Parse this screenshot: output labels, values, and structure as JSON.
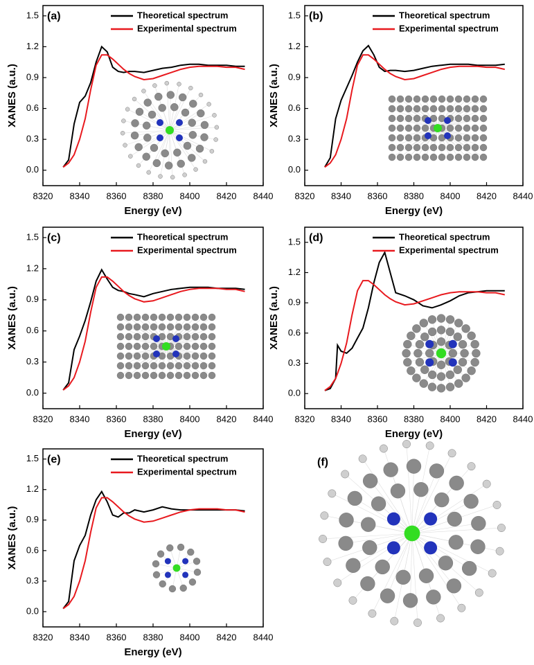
{
  "chart_data": [
    {
      "type": "line",
      "panel_label": "(a)",
      "xlabel": "Energy (eV)",
      "ylabel": "XANES (a.u.)",
      "xlim": [
        8320,
        8440
      ],
      "xticks": [
        8320,
        8340,
        8360,
        8380,
        8400,
        8420,
        8440
      ],
      "ylim": [
        -0.15,
        1.6
      ],
      "yticks": [
        {
          "value": 0,
          "label": "0.0"
        },
        0.3,
        0.6,
        0.9,
        1.2,
        1.5
      ],
      "x": [
        8331,
        8334,
        8337,
        8340,
        8343,
        8346,
        8349,
        8352,
        8355,
        8358,
        8361,
        8364,
        8367,
        8370,
        8375,
        8380,
        8385,
        8390,
        8395,
        8400,
        8405,
        8410,
        8415,
        8420,
        8425,
        8430
      ],
      "series": [
        {
          "name": "Theoretical spectrum",
          "color": "#000000",
          "values": [
            0.03,
            0.1,
            0.45,
            0.66,
            0.72,
            0.85,
            1.05,
            1.2,
            1.15,
            1.0,
            0.96,
            0.95,
            0.96,
            0.96,
            0.95,
            0.97,
            0.99,
            1.0,
            1.02,
            1.03,
            1.03,
            1.02,
            1.02,
            1.02,
            1.01,
            1.01
          ]
        },
        {
          "name": "Experimental spectrum",
          "color": "#e8191e",
          "values": [
            0.03,
            0.07,
            0.15,
            0.3,
            0.5,
            0.78,
            1.02,
            1.12,
            1.12,
            1.08,
            1.03,
            0.98,
            0.94,
            0.91,
            0.88,
            0.89,
            0.92,
            0.95,
            0.98,
            1.0,
            1.01,
            1.01,
            1.01,
            1.0,
            1.0,
            0.98
          ]
        }
      ]
    },
    {
      "type": "line",
      "panel_label": "(b)",
      "xlabel": "Energy (eV)",
      "ylabel": "XANES (a.u.)",
      "xlim": [
        8320,
        8440
      ],
      "xticks": [
        8320,
        8340,
        8360,
        8380,
        8400,
        8420,
        8440
      ],
      "ylim": [
        -0.15,
        1.6
      ],
      "yticks": [
        {
          "value": 0,
          "label": "0.0"
        },
        0.3,
        0.6,
        0.9,
        1.2,
        1.5
      ],
      "x": [
        8331,
        8334,
        8337,
        8340,
        8343,
        8346,
        8349,
        8352,
        8355,
        8358,
        8361,
        8364,
        8367,
        8370,
        8375,
        8380,
        8385,
        8390,
        8395,
        8400,
        8405,
        8410,
        8415,
        8420,
        8425,
        8430
      ],
      "series": [
        {
          "name": "Theoretical spectrum",
          "color": "#000000",
          "values": [
            0.03,
            0.12,
            0.5,
            0.68,
            0.8,
            0.92,
            1.05,
            1.16,
            1.21,
            1.12,
            1.0,
            0.96,
            0.97,
            0.97,
            0.96,
            0.97,
            0.99,
            1.01,
            1.02,
            1.03,
            1.03,
            1.03,
            1.02,
            1.02,
            1.02,
            1.03
          ]
        },
        {
          "name": "Experimental spectrum",
          "color": "#e8191e",
          "values": [
            0.03,
            0.07,
            0.15,
            0.3,
            0.5,
            0.78,
            1.02,
            1.12,
            1.12,
            1.08,
            1.03,
            0.98,
            0.94,
            0.91,
            0.88,
            0.89,
            0.92,
            0.95,
            0.98,
            1.0,
            1.01,
            1.01,
            1.01,
            1.0,
            1.0,
            0.98
          ]
        }
      ]
    },
    {
      "type": "line",
      "panel_label": "(c)",
      "xlabel": "Energy (eV)",
      "ylabel": "XANES (a.u.)",
      "xlim": [
        8320,
        8440
      ],
      "xticks": [
        8320,
        8340,
        8360,
        8380,
        8400,
        8420,
        8440
      ],
      "ylim": [
        -0.15,
        1.6
      ],
      "yticks": [
        {
          "value": 0,
          "label": "0.0"
        },
        0.3,
        0.6,
        0.9,
        1.2,
        1.5
      ],
      "x": [
        8331,
        8334,
        8337,
        8340,
        8343,
        8346,
        8349,
        8352,
        8355,
        8358,
        8361,
        8364,
        8367,
        8370,
        8375,
        8380,
        8385,
        8390,
        8395,
        8400,
        8405,
        8410,
        8415,
        8420,
        8425,
        8430
      ],
      "series": [
        {
          "name": "Theoretical spectrum",
          "color": "#000000",
          "values": [
            0.03,
            0.1,
            0.42,
            0.55,
            0.7,
            0.88,
            1.08,
            1.19,
            1.1,
            1.02,
            0.99,
            0.98,
            0.96,
            0.95,
            0.93,
            0.96,
            0.98,
            1.0,
            1.01,
            1.02,
            1.02,
            1.02,
            1.01,
            1.01,
            1.01,
            1.0
          ]
        },
        {
          "name": "Experimental spectrum",
          "color": "#e8191e",
          "values": [
            0.03,
            0.07,
            0.15,
            0.3,
            0.5,
            0.78,
            1.02,
            1.12,
            1.12,
            1.08,
            1.03,
            0.98,
            0.94,
            0.91,
            0.88,
            0.89,
            0.92,
            0.95,
            0.98,
            1.0,
            1.01,
            1.01,
            1.01,
            1.0,
            1.0,
            0.98
          ]
        }
      ]
    },
    {
      "type": "line",
      "panel_label": "(d)",
      "xlabel": "Energy (eV)",
      "ylabel": "XANES (a.u.)",
      "xlim": [
        8320,
        8440
      ],
      "xticks": [
        8320,
        8340,
        8360,
        8380,
        8400,
        8420,
        8440
      ],
      "ylim": [
        -0.15,
        1.65
      ],
      "yticks": [
        {
          "value": 0,
          "label": "0.0"
        },
        0.3,
        0.6,
        0.9,
        1.2,
        1.5
      ],
      "x": [
        8331,
        8334,
        8337,
        8338,
        8340,
        8343,
        8346,
        8349,
        8352,
        8355,
        8358,
        8361,
        8364,
        8367,
        8370,
        8375,
        8380,
        8385,
        8390,
        8395,
        8400,
        8405,
        8410,
        8415,
        8420,
        8425,
        8430
      ],
      "series": [
        {
          "name": "Theoretical spectrum",
          "color": "#000000",
          "values": [
            0.03,
            0.05,
            0.15,
            0.48,
            0.42,
            0.4,
            0.45,
            0.55,
            0.65,
            0.85,
            1.1,
            1.3,
            1.4,
            1.2,
            1.0,
            0.97,
            0.93,
            0.87,
            0.85,
            0.88,
            0.92,
            0.97,
            1.0,
            1.01,
            1.02,
            1.02,
            1.02
          ]
        },
        {
          "name": "Experimental spectrum",
          "color": "#e8191e",
          "values": [
            0.03,
            0.07,
            0.15,
            0.2,
            0.3,
            0.5,
            0.78,
            1.02,
            1.12,
            1.12,
            1.08,
            1.03,
            0.98,
            0.94,
            0.91,
            0.88,
            0.89,
            0.92,
            0.95,
            0.98,
            1.0,
            1.01,
            1.01,
            1.01,
            1.0,
            1.0,
            0.98
          ]
        }
      ]
    },
    {
      "type": "line",
      "panel_label": "(e)",
      "xlabel": "Energy (eV)",
      "ylabel": "XANES (a.u.)",
      "xlim": [
        8320,
        8440
      ],
      "xticks": [
        8320,
        8340,
        8360,
        8380,
        8400,
        8420,
        8440
      ],
      "ylim": [
        -0.15,
        1.6
      ],
      "yticks": [
        {
          "value": 0,
          "label": "0.0"
        },
        0.3,
        0.6,
        0.9,
        1.2,
        1.5
      ],
      "x": [
        8331,
        8334,
        8337,
        8340,
        8343,
        8346,
        8349,
        8352,
        8355,
        8358,
        8361,
        8364,
        8367,
        8370,
        8375,
        8380,
        8385,
        8390,
        8395,
        8400,
        8405,
        8410,
        8415,
        8420,
        8425,
        8430
      ],
      "series": [
        {
          "name": "Theoretical spectrum",
          "color": "#000000",
          "values": [
            0.03,
            0.1,
            0.5,
            0.65,
            0.75,
            0.95,
            1.1,
            1.18,
            1.08,
            0.95,
            0.93,
            0.97,
            0.97,
            1.0,
            0.98,
            1.0,
            1.03,
            1.01,
            1.0,
            1.0,
            1.0,
            1.0,
            1.0,
            1.0,
            1.0,
            0.99
          ]
        },
        {
          "name": "Experimental spectrum",
          "color": "#e8191e",
          "values": [
            0.03,
            0.07,
            0.15,
            0.3,
            0.5,
            0.78,
            1.02,
            1.12,
            1.12,
            1.08,
            1.03,
            0.98,
            0.94,
            0.91,
            0.88,
            0.89,
            0.92,
            0.95,
            0.98,
            1.0,
            1.01,
            1.01,
            1.01,
            1.0,
            1.0,
            0.98
          ]
        }
      ]
    }
  ],
  "panel_f": {
    "label": "(f)"
  }
}
